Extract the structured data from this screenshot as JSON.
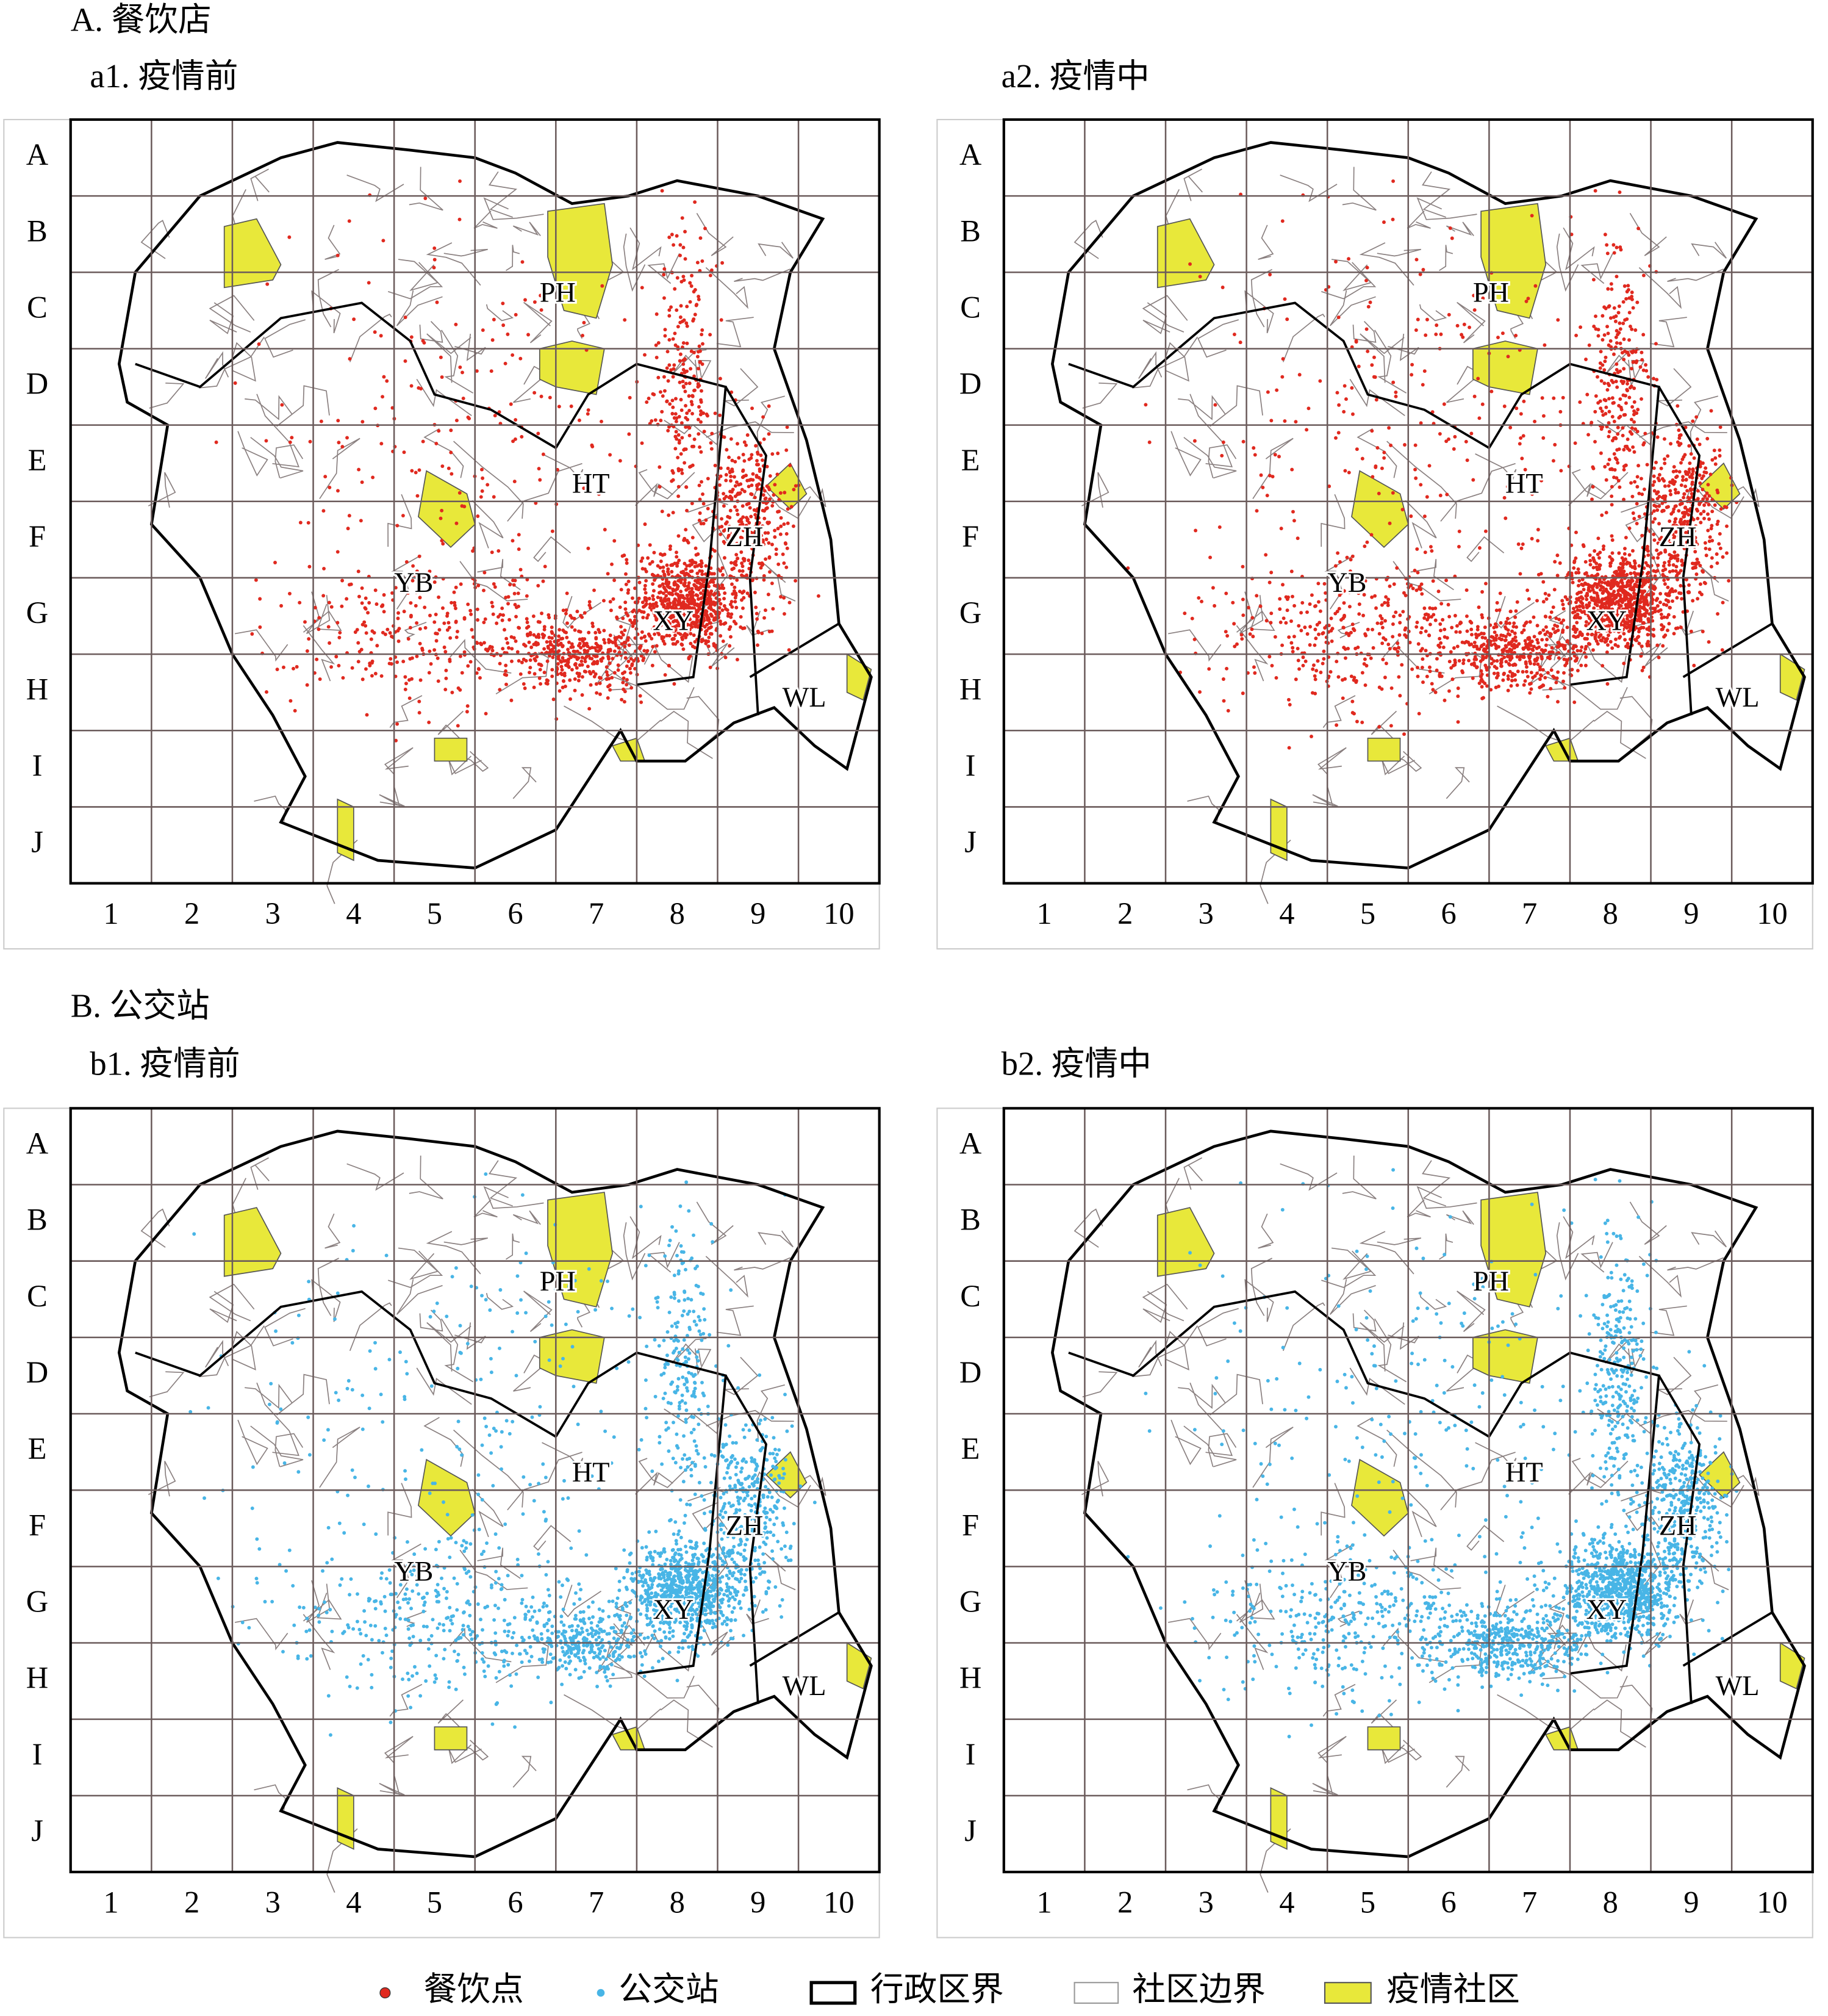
{
  "header": {
    "title_a": "A. 餐饮店",
    "title_b": "B. 公交站"
  },
  "panels": [
    {
      "title": "a1. 疫情前"
    },
    {
      "title": "a2. 疫情中"
    },
    {
      "title": "b1. 疫情前"
    },
    {
      "title": "b2. 疫情中"
    }
  ],
  "row_labels": [
    "A",
    "B",
    "C",
    "D",
    "E",
    "F",
    "G",
    "H",
    "I",
    "J"
  ],
  "col_labels": [
    "1",
    "2",
    "3",
    "4",
    "5",
    "6",
    "7",
    "8",
    "9",
    "10"
  ],
  "district_labels": [
    "PH",
    "HT",
    "YB",
    "XY",
    "ZH",
    "WL"
  ],
  "legend": [
    "餐饮点",
    "公交站",
    "行政区界",
    "社区边界",
    "疫情社区"
  ]
}
